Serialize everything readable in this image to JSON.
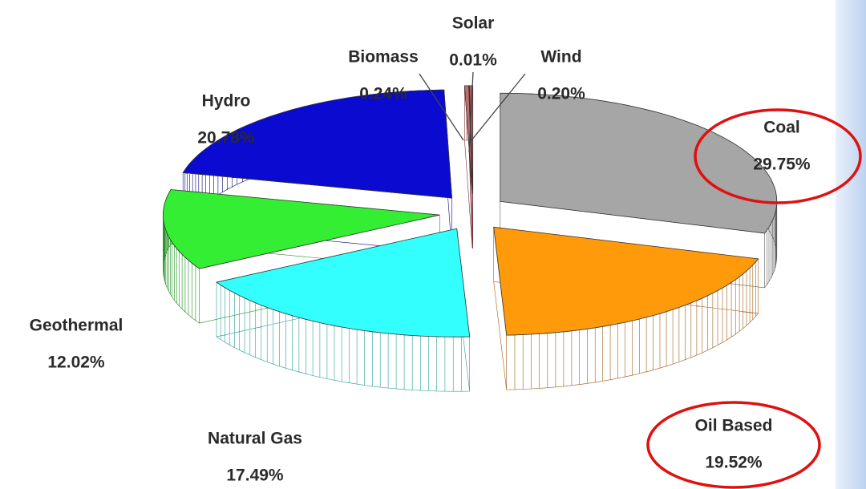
{
  "chart_data": {
    "type": "pie",
    "categories": [
      "Coal",
      "Oil Based",
      "Natural Gas",
      "Geothermal",
      "Hydro",
      "Biomass",
      "Solar",
      "Wind"
    ],
    "values": [
      29.75,
      19.52,
      17.49,
      12.02,
      20.78,
      0.24,
      0.01,
      0.2
    ],
    "value_labels": [
      "29.75%",
      "19.52%",
      "17.49%",
      "12.02%",
      "20.78%",
      "0.24%",
      "0.01%",
      "0.20%"
    ],
    "colors": [
      "#a6a6a6",
      "#ff9a0a",
      "#33ffff",
      "#33ee33",
      "#0a0ad0",
      "#c07070",
      "#d08080",
      "#b06060"
    ],
    "side_colors": [
      "#5a5a5a",
      "#a0601a",
      "#2aa0a0",
      "#1f8f1f",
      "#08087a",
      "#7a3030",
      "#8a3a3a",
      "#6a2a2a"
    ]
  }
}
